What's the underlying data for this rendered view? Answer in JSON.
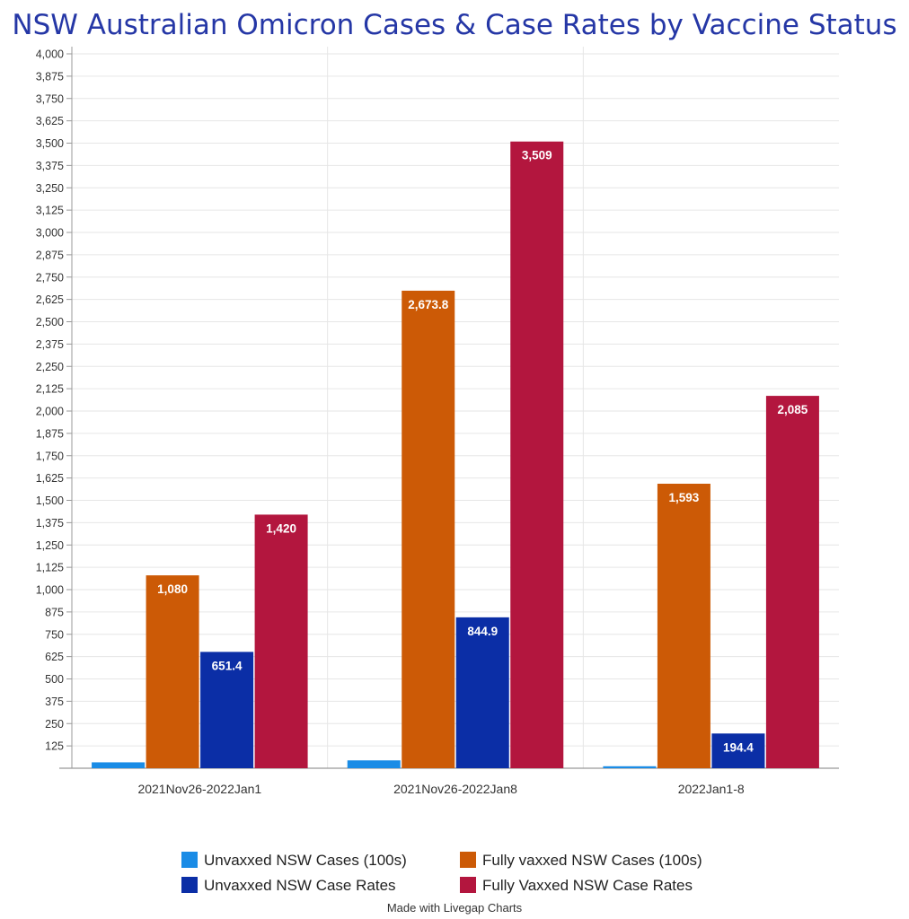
{
  "chart_data": {
    "type": "bar",
    "title": "NSW Australian Omicron Cases & Case Rates by Vaccine Status",
    "categories": [
      "2021Nov26-2022Jan1",
      "2021Nov26-2022Jan8",
      "2022Jan1-8"
    ],
    "series": [
      {
        "name": "Unvaxxed NSW Cases (100s)",
        "color": "#1a8ce6",
        "values": [
          33,
          44,
          11
        ],
        "labels": [
          "",
          "",
          ""
        ]
      },
      {
        "name": "Fully vaxxed NSW Cases (100s)",
        "color": "#cc5a06",
        "values": [
          1080,
          2673.8,
          1593
        ],
        "labels": [
          "1,080",
          "2,673.8",
          "1,593"
        ]
      },
      {
        "name": "Unvaxxed NSW Case Rates",
        "color": "#0b2ea6",
        "values": [
          651.4,
          844.9,
          194.4
        ],
        "labels": [
          "651.4",
          "844.9",
          "194.4"
        ]
      },
      {
        "name": "Fully Vaxxed NSW Case Rates",
        "color": "#b3163e",
        "values": [
          1420,
          3509,
          2085
        ],
        "labels": [
          "1,420",
          "3,509",
          "2,085"
        ]
      }
    ],
    "ylim": [
      0,
      4000
    ],
    "yticks": [
      125,
      250,
      375,
      500,
      625,
      750,
      875,
      1000,
      1125,
      1250,
      1375,
      1500,
      1625,
      1750,
      1875,
      2000,
      2125,
      2250,
      2375,
      2500,
      2625,
      2750,
      2875,
      3000,
      3125,
      3250,
      3375,
      3500,
      3625,
      3750,
      3875,
      4000
    ],
    "ytick_labels": [
      "125",
      "250",
      "375",
      "500",
      "625",
      "750",
      "875",
      "1,000",
      "1,125",
      "1,250",
      "1,375",
      "1,500",
      "1,625",
      "1,750",
      "1,875",
      "2,000",
      "2,125",
      "2,250",
      "2,375",
      "2,500",
      "2,625",
      "2,750",
      "2,875",
      "3,000",
      "3,125",
      "3,250",
      "3,375",
      "3,500",
      "3,625",
      "3,750",
      "3,875",
      "4,000"
    ],
    "grid": true,
    "legend_position": "bottom-center",
    "title_color": "#2537a6",
    "footer": "Made with Livegap Charts"
  }
}
